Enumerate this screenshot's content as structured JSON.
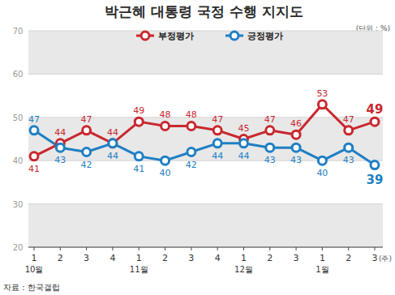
{
  "chart_data": {
    "type": "line",
    "title": "박근혜 대통령 국정 수행 지지도",
    "unit_note": "(단위 : %)",
    "source": "자료 : 한국갤럽",
    "x_label": "(주)",
    "categories": [
      "1",
      "2",
      "3",
      "4",
      "1",
      "2",
      "3",
      "4",
      "1",
      "2",
      "3",
      "1",
      "2",
      "3"
    ],
    "category_groups": [
      "10월",
      null,
      null,
      null,
      "11월",
      null,
      null,
      null,
      "12월",
      null,
      null,
      "1월",
      null,
      null
    ],
    "series": [
      {
        "name": "부정평가",
        "color": "#c8282e",
        "marker": "circle",
        "values": [
          41,
          44,
          47,
          44,
          49,
          48,
          48,
          47,
          45,
          47,
          46,
          53,
          47,
          49
        ]
      },
      {
        "name": "긍정평가",
        "color": "#1f7fc4",
        "marker": "circle",
        "values": [
          47,
          43,
          42,
          44,
          41,
          40,
          42,
          44,
          44,
          43,
          43,
          40,
          43,
          39
        ]
      }
    ],
    "ylim": [
      20,
      70
    ],
    "yticks": [
      20,
      30,
      40,
      50,
      60,
      70
    ],
    "grid": true,
    "legend": "top",
    "data_labels": true
  }
}
